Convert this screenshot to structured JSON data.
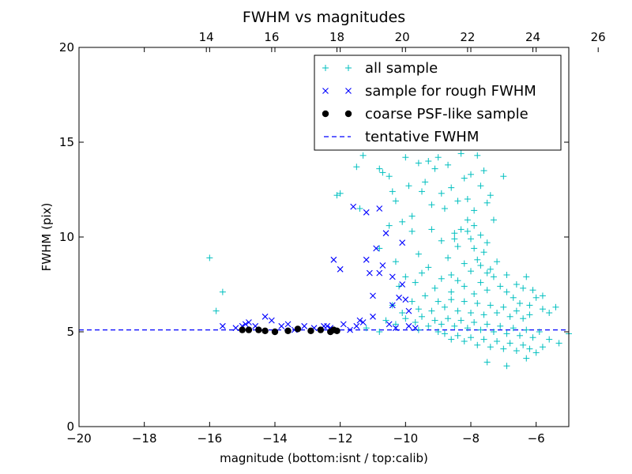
{
  "chart_data": {
    "type": "scatter",
    "title": "FWHM vs magnitudes",
    "xlabel": "magnitude (bottom:isnt / top:calib)",
    "ylabel": "FWHM (pix)",
    "xlim": [
      -20,
      -5
    ],
    "ylim": [
      0,
      20
    ],
    "x_ticks": [
      -20,
      -18,
      -16,
      -14,
      -12,
      -10,
      -8,
      -6
    ],
    "x_tick_labels": [
      "−20",
      "−18",
      "−16",
      "−14",
      "−12",
      "−10",
      "−8",
      "−6"
    ],
    "y_ticks": [
      0,
      5,
      10,
      15,
      20
    ],
    "y_tick_labels": [
      "0",
      "5",
      "10",
      "15",
      "20"
    ],
    "top_axis": {
      "ticks": [
        14,
        16,
        18,
        20,
        22,
        24,
        26
      ],
      "tick_labels": [
        "14",
        "16",
        "18",
        "20",
        "22",
        "24",
        "26"
      ],
      "offset": 30.1
    },
    "grid": false,
    "legend_position": "top-right",
    "legend": [
      {
        "label": "all sample",
        "marker": "+",
        "color": "#00bfbf"
      },
      {
        "label": "sample for rough FWHM",
        "marker": "x",
        "color": "#0000ff"
      },
      {
        "label": "coarse PSF-like sample",
        "marker": "o",
        "color": "#000000"
      },
      {
        "label": "tentative FWHM",
        "marker": "dashed-line",
        "color": "#0000ff"
      }
    ],
    "series": [
      {
        "name": "all sample",
        "marker": "+",
        "color": "#00bfbf",
        "points": [
          [
            -16.0,
            8.9
          ],
          [
            -15.6,
            7.1
          ],
          [
            -15.8,
            6.1
          ],
          [
            -12.1,
            12.2
          ],
          [
            -12.0,
            12.3
          ],
          [
            -11.5,
            13.7
          ],
          [
            -11.3,
            14.3
          ],
          [
            -11.0,
            15.2
          ],
          [
            -11.4,
            11.5
          ],
          [
            -10.8,
            13.6
          ],
          [
            -10.7,
            13.4
          ],
          [
            -10.5,
            13.2
          ],
          [
            -10.4,
            12.4
          ],
          [
            -10.3,
            11.9
          ],
          [
            -10.2,
            15.1
          ],
          [
            -10.0,
            14.2
          ],
          [
            -9.9,
            14.8
          ],
          [
            -9.7,
            15.3
          ],
          [
            -9.9,
            12.7
          ],
          [
            -9.6,
            13.9
          ],
          [
            -9.5,
            12.4
          ],
          [
            -9.8,
            11.1
          ],
          [
            -9.4,
            12.9
          ],
          [
            -9.3,
            14.0
          ],
          [
            -9.2,
            11.7
          ],
          [
            -9.1,
            13.6
          ],
          [
            -9.0,
            14.2
          ],
          [
            -8.9,
            12.3
          ],
          [
            -8.8,
            11.5
          ],
          [
            -8.7,
            13.8
          ],
          [
            -8.6,
            12.6
          ],
          [
            -8.5,
            15.2
          ],
          [
            -8.4,
            11.9
          ],
          [
            -8.3,
            14.4
          ],
          [
            -8.2,
            13.1
          ],
          [
            -8.1,
            12.0
          ],
          [
            -8.0,
            13.3
          ],
          [
            -7.9,
            11.4
          ],
          [
            -7.8,
            14.3
          ],
          [
            -7.7,
            12.7
          ],
          [
            -7.6,
            13.5
          ],
          [
            -7.5,
            11.8
          ],
          [
            -7.4,
            12.2
          ],
          [
            -7.3,
            10.9
          ],
          [
            -7.0,
            13.2
          ],
          [
            -8.5,
            10.2
          ],
          [
            -9.2,
            10.4
          ],
          [
            -9.8,
            10.3
          ],
          [
            -10.1,
            10.8
          ],
          [
            -10.5,
            10.6
          ],
          [
            -10.8,
            9.4
          ],
          [
            -10.3,
            8.7
          ],
          [
            -9.6,
            9.1
          ],
          [
            -9.3,
            8.4
          ],
          [
            -8.9,
            9.8
          ],
          [
            -8.7,
            8.9
          ],
          [
            -8.4,
            9.5
          ],
          [
            -8.2,
            8.6
          ],
          [
            -8.0,
            9.9
          ],
          [
            -7.8,
            8.8
          ],
          [
            -7.6,
            9.2
          ],
          [
            -7.4,
            8.3
          ],
          [
            -7.2,
            8.7
          ],
          [
            -7.9,
            10.6
          ],
          [
            -8.1,
            10.9
          ],
          [
            -8.3,
            10.4
          ],
          [
            -7.7,
            10.1
          ],
          [
            -7.5,
            9.7
          ],
          [
            -10.2,
            7.4
          ],
          [
            -10.0,
            7.9
          ],
          [
            -9.7,
            7.6
          ],
          [
            -9.5,
            8.1
          ],
          [
            -9.1,
            7.3
          ],
          [
            -8.9,
            7.8
          ],
          [
            -8.6,
            7.1
          ],
          [
            -8.4,
            7.7
          ],
          [
            -8.2,
            7.4
          ],
          [
            -8.0,
            8.2
          ],
          [
            -7.9,
            7.0
          ],
          [
            -7.7,
            7.6
          ],
          [
            -7.5,
            7.2
          ],
          [
            -7.3,
            7.9
          ],
          [
            -7.1,
            7.4
          ],
          [
            -6.9,
            7.1
          ],
          [
            -6.7,
            6.8
          ],
          [
            -6.5,
            6.5
          ],
          [
            -6.4,
            7.3
          ],
          [
            -6.2,
            6.4
          ],
          [
            -6.0,
            6.8
          ],
          [
            -5.8,
            6.2
          ],
          [
            -5.6,
            6.0
          ],
          [
            -5.4,
            6.3
          ],
          [
            -10.4,
            6.4
          ],
          [
            -10.1,
            6.0
          ],
          [
            -9.8,
            6.6
          ],
          [
            -9.6,
            6.2
          ],
          [
            -9.4,
            6.9
          ],
          [
            -9.2,
            6.1
          ],
          [
            -9.0,
            6.6
          ],
          [
            -8.8,
            6.3
          ],
          [
            -8.6,
            6.7
          ],
          [
            -8.4,
            6.1
          ],
          [
            -8.2,
            6.6
          ],
          [
            -8.0,
            6.0
          ],
          [
            -7.8,
            6.5
          ],
          [
            -7.6,
            5.9
          ],
          [
            -7.4,
            6.4
          ],
          [
            -7.2,
            6.0
          ],
          [
            -7.0,
            6.3
          ],
          [
            -6.8,
            5.8
          ],
          [
            -6.6,
            6.1
          ],
          [
            -6.4,
            5.7
          ],
          [
            -6.2,
            5.9
          ],
          [
            -10.6,
            5.6
          ],
          [
            -10.3,
            5.4
          ],
          [
            -10.0,
            5.7
          ],
          [
            -9.7,
            5.5
          ],
          [
            -9.5,
            5.8
          ],
          [
            -9.3,
            5.3
          ],
          [
            -9.1,
            5.6
          ],
          [
            -8.9,
            5.4
          ],
          [
            -8.7,
            5.7
          ],
          [
            -8.5,
            5.3
          ],
          [
            -8.3,
            5.6
          ],
          [
            -8.1,
            5.2
          ],
          [
            -7.9,
            5.5
          ],
          [
            -7.7,
            5.1
          ],
          [
            -7.5,
            5.4
          ],
          [
            -7.3,
            5.0
          ],
          [
            -7.1,
            5.3
          ],
          [
            -6.9,
            4.9
          ],
          [
            -6.7,
            5.2
          ],
          [
            -6.5,
            4.8
          ],
          [
            -6.3,
            5.1
          ],
          [
            -6.1,
            4.7
          ],
          [
            -5.9,
            5.0
          ],
          [
            -5.6,
            4.6
          ],
          [
            -5.3,
            4.4
          ],
          [
            -5.0,
            4.9
          ],
          [
            -8.8,
            4.9
          ],
          [
            -8.6,
            4.6
          ],
          [
            -8.4,
            4.8
          ],
          [
            -8.2,
            4.5
          ],
          [
            -8.0,
            4.7
          ],
          [
            -7.8,
            4.3
          ],
          [
            -7.6,
            4.6
          ],
          [
            -7.4,
            4.2
          ],
          [
            -7.2,
            4.5
          ],
          [
            -7.0,
            4.1
          ],
          [
            -6.8,
            4.4
          ],
          [
            -6.6,
            4.0
          ],
          [
            -6.4,
            4.3
          ],
          [
            -6.2,
            4.1
          ],
          [
            -7.5,
            3.4
          ],
          [
            -6.9,
            3.2
          ],
          [
            -6.0,
            3.9
          ],
          [
            -5.8,
            4.2
          ],
          [
            -6.3,
            3.6
          ],
          [
            -9.0,
            5.0
          ],
          [
            -9.6,
            5.1
          ],
          [
            -10.8,
            5.0
          ],
          [
            -11.2,
            5.2
          ],
          [
            -8.5,
            9.9
          ],
          [
            -8.1,
            10.3
          ],
          [
            -7.9,
            9.4
          ],
          [
            -8.6,
            8.0
          ],
          [
            -7.7,
            8.5
          ],
          [
            -7.5,
            8.1
          ],
          [
            -6.9,
            8.0
          ],
          [
            -6.6,
            7.5
          ],
          [
            -6.3,
            7.9
          ],
          [
            -6.1,
            7.2
          ],
          [
            -5.8,
            6.9
          ]
        ]
      },
      {
        "name": "sample for rough FWHM",
        "marker": "x",
        "color": "#0000ff",
        "points": [
          [
            -15.6,
            5.3
          ],
          [
            -15.2,
            5.2
          ],
          [
            -14.9,
            5.4
          ],
          [
            -14.6,
            5.3
          ],
          [
            -14.3,
            5.8
          ],
          [
            -14.1,
            5.6
          ],
          [
            -13.8,
            5.3
          ],
          [
            -13.4,
            5.1
          ],
          [
            -13.1,
            5.3
          ],
          [
            -12.8,
            5.2
          ],
          [
            -12.5,
            5.3
          ],
          [
            -12.3,
            5.2
          ],
          [
            -12.2,
            8.8
          ],
          [
            -12.0,
            8.3
          ],
          [
            -11.9,
            5.4
          ],
          [
            -11.7,
            5.1
          ],
          [
            -11.5,
            5.3
          ],
          [
            -11.4,
            5.6
          ],
          [
            -11.3,
            5.5
          ],
          [
            -11.2,
            8.8
          ],
          [
            -11.1,
            8.1
          ],
          [
            -11.0,
            6.9
          ],
          [
            -10.9,
            9.4
          ],
          [
            -10.8,
            11.5
          ],
          [
            -10.7,
            8.5
          ],
          [
            -10.6,
            10.2
          ],
          [
            -10.5,
            5.4
          ],
          [
            -10.4,
            7.9
          ],
          [
            -10.3,
            5.2
          ],
          [
            -10.2,
            6.8
          ],
          [
            -10.1,
            9.7
          ],
          [
            -10.0,
            6.7
          ],
          [
            -9.9,
            5.3
          ],
          [
            -9.7,
            5.2
          ],
          [
            -11.6,
            11.6
          ],
          [
            -11.2,
            11.3
          ],
          [
            -10.8,
            8.1
          ],
          [
            -10.4,
            6.4
          ],
          [
            -10.1,
            7.5
          ],
          [
            -9.9,
            6.1
          ],
          [
            -11.0,
            5.8
          ],
          [
            -12.4,
            5.3
          ],
          [
            -13.6,
            5.4
          ],
          [
            -14.8,
            5.5
          ],
          [
            -15.0,
            5.3
          ]
        ]
      },
      {
        "name": "coarse PSF-like sample",
        "marker": "o",
        "color": "#000000",
        "points": [
          [
            -15.0,
            5.1
          ],
          [
            -14.8,
            5.1
          ],
          [
            -14.5,
            5.1
          ],
          [
            -14.3,
            5.05
          ],
          [
            -14.0,
            5.0
          ],
          [
            -13.6,
            5.05
          ],
          [
            -13.3,
            5.15
          ],
          [
            -12.9,
            5.05
          ],
          [
            -12.6,
            5.1
          ],
          [
            -12.3,
            5.0
          ],
          [
            -12.2,
            5.1
          ],
          [
            -12.1,
            5.05
          ]
        ]
      }
    ],
    "reference_lines": [
      {
        "name": "tentative FWHM",
        "y": 5.1,
        "style": "dashed",
        "color": "#0000ff"
      }
    ]
  }
}
